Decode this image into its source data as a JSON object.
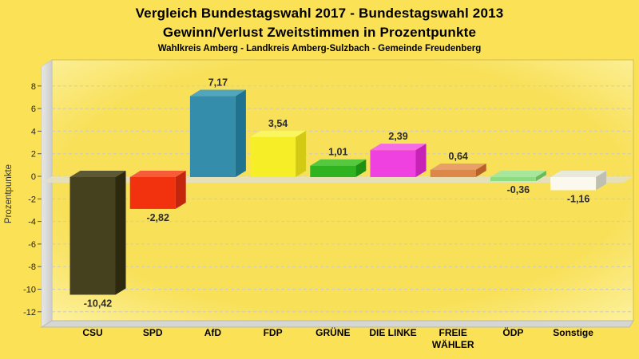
{
  "header": {
    "title_line1": "Vergleich Bundestagswahl 2017 - Bundestagswahl 2013",
    "title_line2": "Gewinn/Verlust Zweitstimmen in Prozentpunkte",
    "subtitle": "Wahlkreis Amberg - Landkreis Amberg-Sulzbach - Gemeinde Freudenberg"
  },
  "chart_data": {
    "type": "bar",
    "style": "3d-columns",
    "title": "Vergleich Bundestagswahl 2017 - Bundestagswahl 2013",
    "subtitle2": "Gewinn/Verlust Zweitstimmen in Prozentpunkte",
    "subtitle3": "Wahlkreis Amberg - Landkreis Amberg-Sulzbach - Gemeinde Freudenberg",
    "xlabel": "",
    "ylabel": "Prozentpunkte",
    "ylim": [
      -12,
      8
    ],
    "ytick_step": 2,
    "grid": "dashed-horizontal",
    "legend": "none",
    "categories": [
      "CSU",
      "SPD",
      "AfD",
      "FDP",
      "GRÜNE",
      "DIE LINKE",
      "FREIE WÄHLER",
      "ÖDP",
      "Sonstige"
    ],
    "category_display": [
      [
        "CSU"
      ],
      [
        "SPD"
      ],
      [
        "AfD"
      ],
      [
        "FDP"
      ],
      [
        "GRÜNE"
      ],
      [
        "DIE LINKE"
      ],
      [
        "FREIE",
        "WÄHLER"
      ],
      [
        "ÖDP"
      ],
      [
        "Sonstige"
      ]
    ],
    "values": [
      -10.42,
      -2.82,
      7.17,
      3.54,
      1.01,
      2.39,
      0.64,
      -0.36,
      -1.16
    ],
    "value_labels": [
      "-10,42",
      "-2,82",
      "7,17",
      "3,54",
      "1,01",
      "2,39",
      "0,64",
      "-0,36",
      "-1,16"
    ],
    "bar_colors": [
      {
        "party": "CSU",
        "front": "#45401d",
        "top": "#5d5834",
        "side": "#2d290e"
      },
      {
        "party": "SPD",
        "front": "#f2320f",
        "top": "#f65c38",
        "side": "#c3260d"
      },
      {
        "party": "AfD",
        "front": "#348eab",
        "top": "#51a6bd",
        "side": "#1f7290"
      },
      {
        "party": "FDP",
        "front": "#f6ef27",
        "top": "#f9f65f",
        "side": "#d3ca14"
      },
      {
        "party": "GRÜNE",
        "front": "#2fb31f",
        "top": "#55c840",
        "side": "#1d9114"
      },
      {
        "party": "DIE LINKE",
        "front": "#ef41e0",
        "top": "#f56ce9",
        "side": "#c623b6"
      },
      {
        "party": "FREIE WÄHLER",
        "front": "#dd8749",
        "top": "#e8a068",
        "side": "#b66128"
      },
      {
        "party": "ÖDP",
        "front": "#8edc80",
        "top": "#a8e69b",
        "side": "#67bb59"
      },
      {
        "party": "Sonstige",
        "front": "#fbf9ed",
        "top": "#e9e9db",
        "side": "#bfbfb2"
      }
    ]
  },
  "colors": {
    "page_bg": "#fbe155",
    "plot_center": "#f8e058",
    "plot_edge": "#fdf3a6",
    "plot_border": "#d2bd52",
    "wall_light": "#e8e8e6",
    "wall_dark": "#cccccb",
    "floor": "#d6d6d2",
    "floor_edge": "#b9b9b4",
    "zero_band": "#e3dfc9",
    "grid": "#cfcabe",
    "tick_text": "#222222",
    "axis_label_text": "#333333",
    "value_text": "#2b2b2b",
    "category_text": "#000000"
  }
}
